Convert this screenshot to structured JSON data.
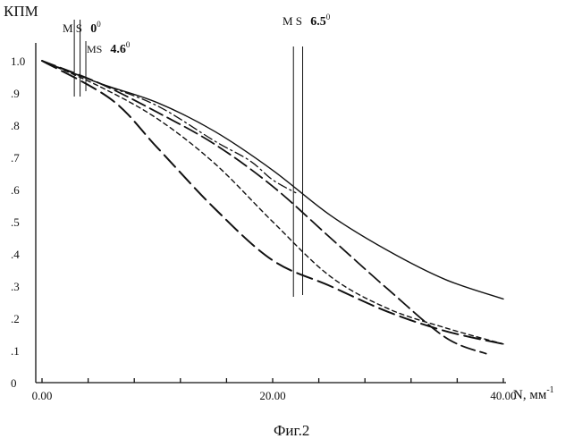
{
  "chart_data": {
    "type": "line",
    "ylabel": "КПМ",
    "xlabel": "N, мм",
    "xlabel_sup": "-1",
    "caption": "Фиг.2",
    "xlim": [
      0,
      40
    ],
    "ylim": [
      0,
      1.0
    ],
    "x_ticks": [
      0,
      20,
      40
    ],
    "x_tick_labels": [
      "0.00",
      "20.00",
      "40.00"
    ],
    "y_ticks": [
      0,
      0.1,
      0.2,
      0.3,
      0.4,
      0.5,
      0.6,
      0.7,
      0.8,
      0.9,
      1.0
    ],
    "y_tick_labels": [
      "0",
      ".1",
      ".2",
      ".3",
      ".4",
      ".5",
      ".6",
      ".7",
      ".8",
      ".9",
      "1.0"
    ],
    "series": [
      {
        "style": "solid",
        "x": [
          0,
          5,
          10,
          15,
          20,
          25,
          30,
          35,
          40
        ],
        "y": [
          1.0,
          0.93,
          0.87,
          0.78,
          0.66,
          0.52,
          0.41,
          0.32,
          0.26
        ]
      },
      {
        "style": "dash-dot",
        "x": [
          0,
          5,
          10,
          15,
          18,
          20,
          22
        ],
        "y": [
          1.0,
          0.93,
          0.86,
          0.75,
          0.69,
          0.63,
          0.59
        ]
      },
      {
        "style": "long-dash",
        "x": [
          0,
          5,
          10,
          15,
          20,
          25,
          30,
          35,
          38.5
        ],
        "y": [
          1.0,
          0.93,
          0.84,
          0.74,
          0.61,
          0.45,
          0.29,
          0.14,
          0.09
        ]
      },
      {
        "style": "short-dash",
        "x": [
          0,
          5,
          10,
          15,
          20,
          25,
          30,
          35,
          40
        ],
        "y": [
          1.0,
          0.92,
          0.82,
          0.68,
          0.5,
          0.33,
          0.23,
          0.17,
          0.12
        ]
      },
      {
        "style": "long-dash-2",
        "x": [
          0,
          6,
          10,
          15,
          20,
          25,
          30,
          35,
          40
        ],
        "y": [
          1.0,
          0.88,
          0.73,
          0.54,
          0.38,
          0.3,
          0.22,
          0.16,
          0.12
        ]
      }
    ],
    "markers": [
      {
        "x": 2.8,
        "top_label": "M"
      },
      {
        "x": 3.3,
        "top_label": "S"
      },
      {
        "x": 3.8,
        "top_label": ""
      },
      {
        "x": 21.8,
        "top_label": "M"
      },
      {
        "x": 22.6,
        "top_label": "S"
      }
    ],
    "annotations": [
      {
        "text": "M S",
        "angle": "0",
        "degree": "0"
      },
      {
        "text": "MS",
        "angle": "4.6",
        "degree": "0"
      },
      {
        "text": "M S",
        "angle": "6.5",
        "degree": "0"
      }
    ]
  }
}
